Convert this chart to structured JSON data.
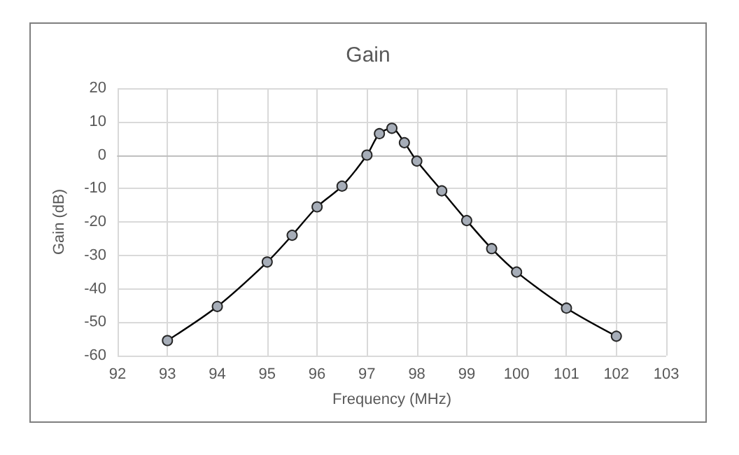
{
  "chart_data": {
    "type": "line",
    "title": "Gain",
    "xlabel": "Frequency (MHz)",
    "ylabel": "Gain (dB)",
    "x": [
      93,
      94,
      95,
      95.5,
      96,
      96.5,
      97,
      97.25,
      97.5,
      97.75,
      98,
      98.5,
      99,
      99.5,
      100,
      101,
      102
    ],
    "series": [
      {
        "color": "#000000",
        "values": [
          -55.5,
          -45.3,
          -32,
          -24,
          -15.5,
          -9.3,
          0,
          6.4,
          8,
          3.7,
          -1.8,
          -10.7,
          -19.6,
          -28,
          -35,
          -45.8,
          -54.2
        ]
      }
    ],
    "xlim": [
      92,
      103
    ],
    "xticks": [
      92,
      93,
      94,
      95,
      96,
      97,
      98,
      99,
      100,
      101,
      102,
      103
    ],
    "ylim": [
      -60,
      20
    ],
    "yticks": [
      -60,
      -50,
      -40,
      -30,
      -20,
      -10,
      0,
      10,
      20
    ],
    "grid": true,
    "marker": "circle",
    "line_style": "solid"
  }
}
